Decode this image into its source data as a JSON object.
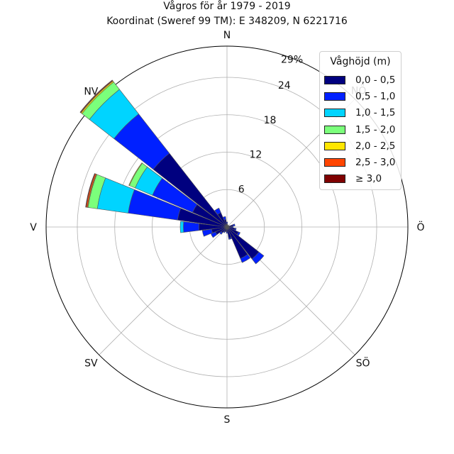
{
  "title_line1": "Vågros för år 1979 - 2019",
  "title_line2": "Koordinat (Sweref 99 TM): E 348209, N 6221716",
  "chart_data": {
    "type": "windrose",
    "unit": "%",
    "rmax": 29,
    "radial_ticks": [
      6,
      12,
      18,
      24
    ],
    "radial_tick_labels": [
      "6",
      "12",
      "18",
      "24",
      "29%"
    ],
    "direction_labels": [
      {
        "angle": 0,
        "label": "N"
      },
      {
        "angle": 45,
        "label": "NÖ"
      },
      {
        "angle": 90,
        "label": "Ö"
      },
      {
        "angle": 135,
        "label": "SÖ"
      },
      {
        "angle": 180,
        "label": "S"
      },
      {
        "angle": 225,
        "label": "SV"
      },
      {
        "angle": 270,
        "label": "V"
      },
      {
        "angle": 315,
        "label": "NV"
      }
    ],
    "legend_title": "Våghöjd (m)",
    "bins": [
      {
        "label": "0,0 - 0,5",
        "color": "#00007f"
      },
      {
        "label": "0,5 - 1,0",
        "color": "#0020ff"
      },
      {
        "label": "1,0 - 1,5",
        "color": "#00d4ff"
      },
      {
        "label": "1,5 - 2,0",
        "color": "#7bff7b"
      },
      {
        "label": "2,0 - 2,5",
        "color": "#ffe600"
      },
      {
        "label": "2,5 - 3,0",
        "color": "#ff4500"
      },
      {
        "label": "≥ 3,0",
        "color": "#7f0000"
      }
    ],
    "sectors": [
      {
        "direction": 0,
        "values": [
          0.5,
          0.3,
          0.0,
          0.0,
          0.0,
          0.0,
          0.0
        ]
      },
      {
        "direction": 15,
        "values": [
          0.3,
          0.1,
          0.0,
          0.0,
          0.0,
          0.0,
          0.0
        ]
      },
      {
        "direction": 30,
        "values": [
          0.2,
          0.1,
          0.0,
          0.0,
          0.0,
          0.0,
          0.0
        ]
      },
      {
        "direction": 45,
        "values": [
          0.2,
          0.0,
          0.0,
          0.0,
          0.0,
          0.0,
          0.0
        ]
      },
      {
        "direction": 60,
        "values": [
          0.3,
          0.1,
          0.0,
          0.0,
          0.0,
          0.0,
          0.0
        ]
      },
      {
        "direction": 75,
        "values": [
          1.0,
          0.3,
          0.0,
          0.0,
          0.0,
          0.0,
          0.0
        ]
      },
      {
        "direction": 90,
        "values": [
          0.8,
          0.2,
          0.0,
          0.0,
          0.0,
          0.0,
          0.0
        ]
      },
      {
        "direction": 105,
        "values": [
          1.3,
          0.2,
          0.0,
          0.0,
          0.0,
          0.0,
          0.0
        ]
      },
      {
        "direction": 120,
        "values": [
          2.0,
          0.3,
          0.0,
          0.0,
          0.0,
          0.0,
          0.0
        ]
      },
      {
        "direction": 135,
        "values": [
          6.5,
          1.0,
          0.0,
          0.0,
          0.0,
          0.0,
          0.0
        ]
      },
      {
        "direction": 150,
        "values": [
          5.5,
          0.7,
          0.0,
          0.0,
          0.0,
          0.0,
          0.0
        ]
      },
      {
        "direction": 165,
        "values": [
          1.8,
          0.2,
          0.0,
          0.0,
          0.0,
          0.0,
          0.0
        ]
      },
      {
        "direction": 180,
        "values": [
          0.8,
          0.2,
          0.0,
          0.0,
          0.0,
          0.0,
          0.0
        ]
      },
      {
        "direction": 195,
        "values": [
          0.7,
          0.1,
          0.0,
          0.0,
          0.0,
          0.0,
          0.0
        ]
      },
      {
        "direction": 210,
        "values": [
          0.8,
          0.2,
          0.0,
          0.0,
          0.0,
          0.0,
          0.0
        ]
      },
      {
        "direction": 225,
        "values": [
          1.2,
          0.3,
          0.0,
          0.0,
          0.0,
          0.0,
          0.0
        ]
      },
      {
        "direction": 240,
        "values": [
          2.0,
          0.8,
          0.0,
          0.0,
          0.0,
          0.0,
          0.0
        ]
      },
      {
        "direction": 255,
        "values": [
          2.5,
          1.5,
          0.0,
          0.0,
          0.0,
          0.0,
          0.0
        ]
      },
      {
        "direction": 270,
        "values": [
          4.5,
          2.5,
          0.5,
          0.0,
          0.0,
          0.0,
          0.0
        ]
      },
      {
        "direction": 285,
        "values": [
          8.0,
          8.0,
          5.0,
          1.5,
          0.1,
          0.2,
          0.1
        ]
      },
      {
        "direction": 300,
        "values": [
          6.0,
          7.0,
          3.0,
          1.0,
          0.1,
          0.0,
          0.0
        ]
      },
      {
        "direction": 315,
        "values": [
          15.0,
          8.0,
          5.0,
          1.5,
          0.2,
          0.1,
          0.1
        ]
      },
      {
        "direction": 330,
        "values": [
          2.5,
          0.8,
          0.0,
          0.0,
          0.0,
          0.0,
          0.0
        ]
      },
      {
        "direction": 345,
        "values": [
          1.2,
          0.5,
          0.0,
          0.0,
          0.0,
          0.0,
          0.0
        ]
      }
    ]
  }
}
